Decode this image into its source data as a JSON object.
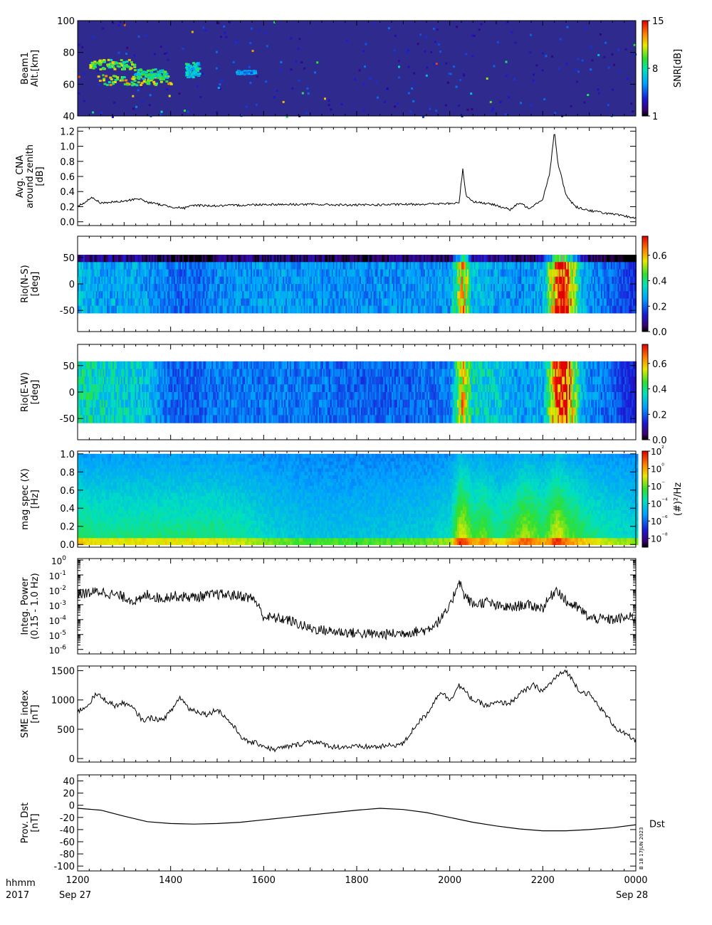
{
  "colors": {
    "background": "#ffffff",
    "axis": "#000000",
    "spectrogram_low": "#2b2b9a",
    "spectrogram_high": "#ff2020"
  },
  "footer": {
    "hhmm_label": "hhmm",
    "year_label": "2017",
    "start_date": "Sep 27",
    "end_date": "Sep 28",
    "stamp": "B 18 17JUN 2023"
  },
  "chart_data": [
    {
      "id": "beam1",
      "type": "heatmap",
      "ylabel": [
        "Beam1",
        "Alt.[km]"
      ],
      "yticks": [
        "40",
        "60",
        "80",
        "100"
      ],
      "ylim": [
        40,
        100
      ],
      "xlim": [
        "1200",
        "0000"
      ],
      "colorbar": {
        "label": "SNR[dB]",
        "ticks": [
          "1",
          "8",
          "15"
        ],
        "range": [
          1,
          15
        ],
        "colormap": "rainbow"
      },
      "blobs": [
        {
          "t0": 12.25,
          "t1": 13.2,
          "alt0": 70,
          "alt1": 76,
          "value": 12
        },
        {
          "t0": 12.4,
          "t1": 14.0,
          "alt0": 60,
          "alt1": 66,
          "value": 13
        },
        {
          "t0": 13.2,
          "t1": 13.9,
          "alt0": 64,
          "alt1": 70,
          "value": 10
        },
        {
          "t0": 14.3,
          "t1": 14.6,
          "alt0": 65,
          "alt1": 74,
          "value": 9
        },
        {
          "t0": 15.4,
          "t1": 15.8,
          "alt0": 67,
          "alt1": 69,
          "value": 7
        }
      ]
    },
    {
      "id": "cna",
      "type": "line",
      "ylabel": [
        "Avg. CNA",
        "around zenith",
        "[dB]"
      ],
      "yticks": [
        "0.0",
        "0.2",
        "0.4",
        "0.6",
        "0.8",
        "1.0",
        "1.2"
      ],
      "ylim": [
        -0.05,
        1.25
      ],
      "xlim": [
        "1200",
        "0000"
      ],
      "series": [
        {
          "x": [
            12.0,
            12.3,
            12.5,
            13.0,
            13.3,
            13.5,
            14.0,
            14.3,
            14.5,
            15.0,
            16.0,
            17.0,
            18.0,
            19.0,
            20.0,
            20.2,
            20.28,
            20.35,
            20.5,
            21.0,
            21.3,
            21.5,
            21.7,
            22.0,
            22.15,
            22.25,
            22.33,
            22.4,
            22.5,
            22.7,
            23.0,
            23.5,
            24.0
          ],
          "y": [
            0.2,
            0.32,
            0.25,
            0.27,
            0.31,
            0.26,
            0.2,
            0.18,
            0.22,
            0.21,
            0.23,
            0.23,
            0.22,
            0.23,
            0.24,
            0.25,
            0.7,
            0.35,
            0.27,
            0.22,
            0.16,
            0.25,
            0.18,
            0.3,
            0.65,
            1.2,
            0.75,
            0.6,
            0.35,
            0.2,
            0.15,
            0.1,
            0.05
          ]
        }
      ]
    },
    {
      "id": "rio_ns",
      "type": "heatmap",
      "ylabel": [
        "Rio(N-S)",
        "[deg]"
      ],
      "yticks": [
        "-50",
        "0",
        "50"
      ],
      "ylim": [
        -90,
        90
      ],
      "data_range": [
        -55,
        55
      ],
      "xlim": [
        "1200",
        "0000"
      ],
      "colorbar": {
        "ticks": [
          "0.0",
          "0.2",
          "0.4",
          "0.6"
        ],
        "range": [
          0,
          0.75
        ],
        "colormap": "rainbow-black"
      },
      "timeline": {
        "x": [
          12.0,
          12.5,
          13.0,
          13.5,
          14.0,
          14.5,
          15.0,
          16.0,
          17.0,
          18.0,
          19.0,
          20.0,
          20.28,
          20.45,
          21.0,
          21.5,
          22.0,
          22.3,
          22.5,
          22.8,
          23.0,
          23.5,
          24.0
        ],
        "y": [
          0.3,
          0.26,
          0.28,
          0.26,
          0.22,
          0.2,
          0.24,
          0.26,
          0.25,
          0.24,
          0.25,
          0.25,
          0.62,
          0.3,
          0.27,
          0.24,
          0.28,
          0.7,
          0.72,
          0.3,
          0.25,
          0.2,
          0.15
        ]
      }
    },
    {
      "id": "rio_ew",
      "type": "heatmap",
      "ylabel": [
        "Rio(E-W)",
        "[deg]"
      ],
      "yticks": [
        "-50",
        "0",
        "50"
      ],
      "ylim": [
        -90,
        90
      ],
      "data_range": [
        -58,
        58
      ],
      "xlim": [
        "1200",
        "0000"
      ],
      "colorbar": {
        "ticks": [
          "0.0",
          "0.2",
          "0.4",
          "0.6"
        ],
        "range": [
          0,
          0.75
        ],
        "colormap": "rainbow-black"
      },
      "timeline": {
        "x": [
          12.0,
          12.5,
          13.0,
          13.5,
          14.0,
          14.5,
          15.0,
          16.0,
          17.0,
          18.0,
          19.0,
          20.0,
          20.28,
          20.45,
          21.0,
          21.5,
          22.0,
          22.3,
          22.5,
          22.8,
          23.0,
          23.5,
          24.0
        ],
        "y": [
          0.38,
          0.35,
          0.33,
          0.3,
          0.2,
          0.2,
          0.22,
          0.22,
          0.22,
          0.2,
          0.2,
          0.22,
          0.62,
          0.35,
          0.32,
          0.26,
          0.28,
          0.7,
          0.72,
          0.3,
          0.24,
          0.2,
          0.12
        ]
      }
    },
    {
      "id": "magspec",
      "type": "heatmap",
      "ylabel": [
        "mag spec (X)",
        "[Hz]"
      ],
      "yticks": [
        "0.0",
        "0.2",
        "0.4",
        "0.6",
        "0.8",
        "1.0"
      ],
      "ylim": [
        -0.03,
        1.03
      ],
      "xlim": [
        "1200",
        "0000"
      ],
      "colorbar": {
        "label": "(#)²/Hz",
        "ticks": [
          "10⁸",
          "10⁶",
          "10⁴",
          "10⁲",
          "10⁰",
          "10²"
        ],
        "tick_prefix": [
          "⁻",
          "⁻",
          "⁻",
          "⁻",
          "",
          ""
        ],
        "range_log": [
          -9,
          2
        ],
        "colormap": "rainbow"
      },
      "activity": {
        "x": [
          12.0,
          12.5,
          13.0,
          13.5,
          14.0,
          14.5,
          15.0,
          15.5,
          16.0,
          16.5,
          17.0,
          18.0,
          19.0,
          19.5,
          20.0,
          20.2,
          20.3,
          20.5,
          20.7,
          21.0,
          21.3,
          21.6,
          22.0,
          22.3,
          22.5,
          23.0,
          23.5,
          24.0
        ],
        "y": [
          0.55,
          0.5,
          0.5,
          0.5,
          0.5,
          0.5,
          0.5,
          0.45,
          0.35,
          0.3,
          0.25,
          0.25,
          0.28,
          0.3,
          0.4,
          0.9,
          0.85,
          0.6,
          0.7,
          0.5,
          0.6,
          0.8,
          0.6,
          0.9,
          0.7,
          0.5,
          0.4,
          0.35
        ]
      }
    },
    {
      "id": "integ_power",
      "type": "line",
      "ylabel": [
        "Integ. Power",
        "(0.15 - 1.0 Hz)"
      ],
      "yticks_log": [
        -6,
        -5,
        -4,
        -3,
        -2,
        -1,
        0
      ],
      "ytick_labels": [
        "10",
        "10",
        "10",
        "10",
        "10",
        "10",
        "10"
      ],
      "ytick_exponents": [
        "-6",
        "-5",
        "-4",
        "-3",
        "-2",
        "-1",
        "0"
      ],
      "ylim_log": [
        -6.3,
        0.1
      ],
      "xlim": [
        "1200",
        "0000"
      ],
      "series": [
        {
          "x": [
            12.0,
            12.5,
            13.0,
            13.3,
            13.5,
            13.8,
            14.0,
            14.5,
            15.0,
            15.5,
            15.8,
            16.0,
            16.5,
            17.0,
            17.5,
            18.0,
            18.5,
            19.0,
            19.5,
            19.8,
            20.0,
            20.2,
            20.3,
            20.5,
            20.8,
            21.0,
            21.3,
            21.6,
            22.0,
            22.3,
            22.5,
            22.8,
            23.0,
            23.5,
            24.0
          ],
          "ylog": [
            -2.3,
            -2.1,
            -2.5,
            -2.8,
            -2.3,
            -2.6,
            -2.4,
            -2.5,
            -2.3,
            -2.4,
            -2.6,
            -3.8,
            -4.0,
            -4.6,
            -4.8,
            -4.9,
            -5.0,
            -4.9,
            -4.7,
            -4.0,
            -3.2,
            -1.3,
            -2.3,
            -3.0,
            -2.8,
            -3.1,
            -3.2,
            -3.0,
            -3.2,
            -1.9,
            -2.8,
            -3.3,
            -3.9,
            -4.0,
            -3.8
          ]
        }
      ]
    },
    {
      "id": "sme",
      "type": "line",
      "ylabel": [
        "SME index",
        "[nT]"
      ],
      "yticks": [
        "0",
        "500",
        "1000",
        "1500"
      ],
      "ylim": [
        -60,
        1580
      ],
      "xlim": [
        "1200",
        "0000"
      ],
      "series": [
        {
          "x": [
            12.0,
            12.2,
            12.4,
            12.6,
            12.8,
            13.0,
            13.2,
            13.4,
            13.6,
            13.8,
            14.0,
            14.2,
            14.4,
            14.6,
            14.8,
            15.0,
            15.3,
            15.6,
            15.9,
            16.2,
            16.5,
            16.8,
            17.0,
            17.5,
            18.0,
            18.5,
            19.0,
            19.3,
            19.5,
            19.8,
            20.0,
            20.2,
            20.5,
            20.8,
            21.0,
            21.3,
            21.5,
            21.8,
            22.0,
            22.3,
            22.5,
            22.8,
            23.0,
            23.3,
            23.6,
            24.0
          ],
          "y": [
            800,
            900,
            1100,
            1000,
            900,
            950,
            850,
            650,
            700,
            650,
            800,
            1050,
            850,
            800,
            750,
            850,
            600,
            300,
            250,
            150,
            200,
            250,
            300,
            200,
            200,
            200,
            250,
            600,
            750,
            1150,
            1000,
            1250,
            1000,
            900,
            950,
            950,
            1100,
            1250,
            1150,
            1400,
            1500,
            1150,
            1100,
            800,
            500,
            300
          ]
        }
      ]
    },
    {
      "id": "dst",
      "type": "line",
      "ylabel": [
        "Prov. Dst",
        "[nT]"
      ],
      "yticks": [
        "-100",
        "-80",
        "-60",
        "-40",
        "-20",
        "0",
        "20",
        "40"
      ],
      "ylim": [
        -108,
        50
      ],
      "xlim": [
        "1200",
        "0000"
      ],
      "series_label": "Dst",
      "series": [
        {
          "x": [
            12.0,
            12.5,
            13.0,
            13.5,
            14.0,
            14.5,
            15.0,
            15.5,
            16.0,
            16.5,
            17.0,
            17.5,
            18.0,
            18.5,
            19.0,
            19.5,
            20.0,
            20.5,
            21.0,
            21.5,
            22.0,
            22.5,
            23.0,
            23.5,
            24.0
          ],
          "y": [
            -5,
            -8,
            -18,
            -27,
            -30,
            -31,
            -30,
            -28,
            -24,
            -20,
            -16,
            -12,
            -8,
            -5,
            -7,
            -12,
            -20,
            -28,
            -34,
            -39,
            -42,
            -42,
            -40,
            -37,
            -32
          ]
        }
      ]
    }
  ],
  "xaxis": {
    "tick_labels": [
      "1200",
      "1400",
      "1600",
      "1800",
      "2000",
      "2200",
      "0000"
    ]
  }
}
